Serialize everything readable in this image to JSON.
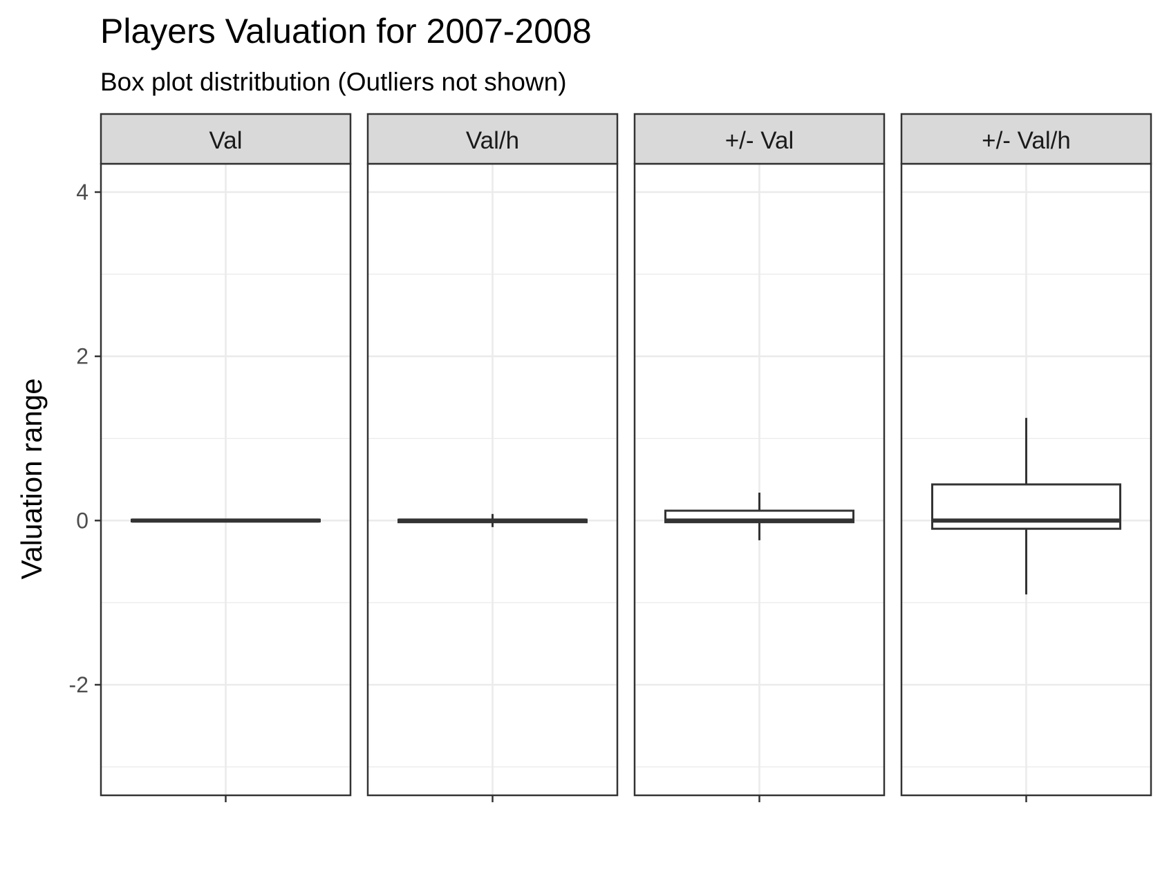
{
  "chart_data": {
    "type": "boxplot",
    "title": "Players Valuation for 2007-2008",
    "subtitle": "Box plot distritbution (Outliers not shown)",
    "xlabel": "",
    "ylabel": "Valuation range",
    "ylim": [
      -3.0,
      4.35
    ],
    "yticks": [
      {
        "value": -2,
        "label": "-2"
      },
      {
        "value": 0,
        "label": "0"
      },
      {
        "value": 2,
        "label": "2"
      },
      {
        "value": 4,
        "label": "4"
      }
    ],
    "grid": true,
    "panels": [
      {
        "name": "Val",
        "whisker_low": -0.01,
        "q1": -0.01,
        "median": 0.0,
        "q3": 0.01,
        "whisker_high": 0.01
      },
      {
        "name": "Val/h",
        "whisker_low": -0.08,
        "q1": -0.02,
        "median": 0.0,
        "q3": 0.01,
        "whisker_high": 0.08
      },
      {
        "name": "+/- Val",
        "whisker_low": -0.24,
        "q1": -0.02,
        "median": 0.0,
        "q3": 0.12,
        "whisker_high": 0.34
      },
      {
        "name": "+/- Val/h",
        "whisker_low": -0.9,
        "q1": -0.1,
        "median": 0.0,
        "q3": 0.44,
        "whisker_high": 1.25
      }
    ],
    "colors": {
      "panel_border": "#333333",
      "strip_fill": "#d9d9d9",
      "grid_major": "#ebebeb",
      "box_line": "#333333"
    }
  }
}
